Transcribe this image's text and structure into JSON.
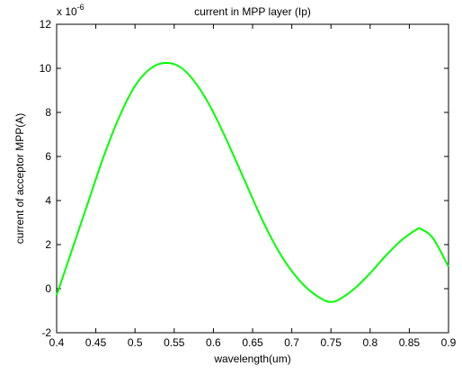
{
  "chart_data": {
    "type": "line",
    "title": "current in MPP layer (Ip)",
    "xlabel": "wavelength(um)",
    "ylabel": "current of acceptor MPP(A)",
    "y_exponent_label": "x 10",
    "y_exponent_power": "-6",
    "xlim": [
      0.4,
      0.9
    ],
    "ylim": [
      -2,
      12
    ],
    "x_ticks": [
      "0.4",
      "0.45",
      "0.5",
      "0.55",
      "0.6",
      "0.65",
      "0.7",
      "0.75",
      "0.8",
      "0.85",
      "0.9"
    ],
    "y_ticks": [
      "-2",
      "0",
      "2",
      "4",
      "6",
      "8",
      "10",
      "12"
    ],
    "grid": false,
    "series_color": "#00ff00",
    "series": [
      {
        "x": [
          0.4,
          0.42,
          0.44,
          0.46,
          0.48,
          0.5,
          0.52,
          0.54,
          0.56,
          0.58,
          0.6,
          0.62,
          0.64,
          0.66,
          0.68,
          0.7,
          0.72,
          0.74,
          0.75,
          0.76,
          0.78,
          0.8,
          0.82,
          0.84,
          0.86,
          0.865,
          0.88,
          0.9
        ],
        "y": [
          -0.3,
          1.8,
          3.9,
          6.0,
          7.8,
          9.2,
          10.0,
          10.25,
          10.0,
          9.2,
          8.0,
          6.5,
          4.9,
          3.3,
          1.9,
          0.8,
          0.0,
          -0.5,
          -0.6,
          -0.5,
          0.0,
          0.7,
          1.5,
          2.2,
          2.7,
          2.7,
          2.3,
          1.0
        ]
      }
    ]
  }
}
